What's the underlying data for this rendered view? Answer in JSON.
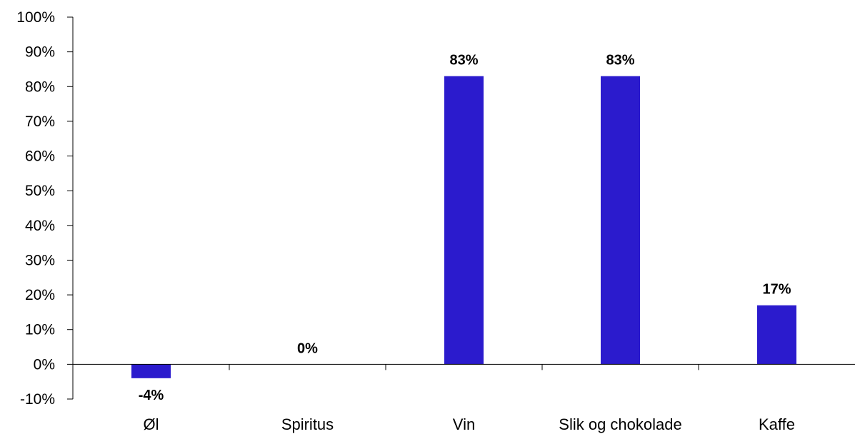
{
  "chart_data": {
    "type": "bar",
    "categories": [
      "Øl",
      "Spiritus",
      "Vin",
      "Slik og chokolade",
      "Kaffe"
    ],
    "values": [
      -4,
      0,
      83,
      83,
      17
    ],
    "data_labels": [
      "-4%",
      "0%",
      "83%",
      "83%",
      "17%"
    ],
    "y_ticks": [
      "-10%",
      "0%",
      "10%",
      "20%",
      "30%",
      "40%",
      "50%",
      "60%",
      "70%",
      "80%",
      "90%",
      "100%"
    ],
    "ylim": [
      -10,
      100
    ],
    "y_tick_step": 10,
    "grid": false,
    "legend": "none",
    "bar_color": "#2b1bcd",
    "axis_color": "#000000"
  }
}
